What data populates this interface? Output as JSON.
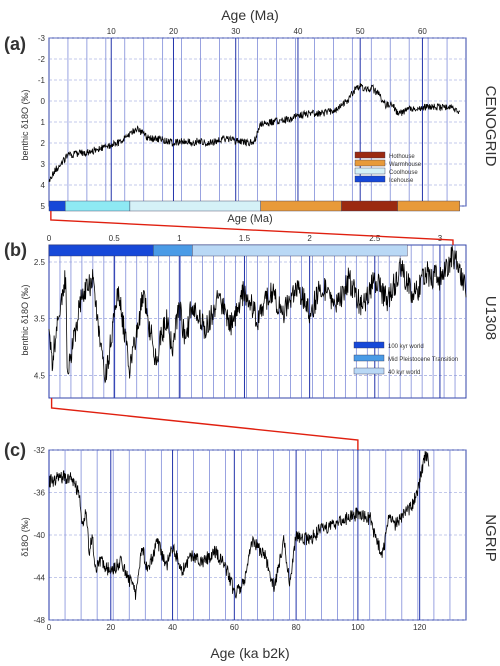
{
  "figure": {
    "top_axis_label": "Age (Ma)",
    "bottom_axis_label": "Age (ka b2k)"
  },
  "chart_data": [
    {
      "type": "line",
      "panel_letter": "(a)",
      "record_label": "CENOGRID",
      "ylabel": "benthic δ18O (‰)",
      "xlabel": "Age (Ma)",
      "xlim": [
        0,
        67
      ],
      "ylim": [
        -3,
        5
      ],
      "y_inverted": true,
      "x_ticks": [
        10,
        20,
        30,
        40,
        50,
        60
      ],
      "y_ticks": [
        -3,
        -2,
        -1,
        0,
        1,
        2,
        3,
        4,
        5
      ],
      "series": [
        {
          "name": "",
          "x": [
            0,
            1,
            2,
            3,
            5,
            8,
            11,
            13,
            14,
            15,
            16,
            18,
            20,
            22,
            23,
            24,
            26,
            28,
            30,
            32,
            33,
            34,
            36,
            38,
            40,
            42,
            44,
            46,
            48,
            49,
            50,
            51,
            52,
            53,
            54,
            55,
            56,
            58,
            60,
            62,
            64,
            66
          ],
          "y": [
            3.8,
            3.3,
            3.0,
            2.6,
            2.5,
            2.3,
            2.0,
            1.6,
            1.3,
            1.5,
            1.8,
            1.8,
            2.0,
            1.9,
            2.0,
            1.9,
            2.0,
            1.8,
            1.9,
            2.0,
            1.9,
            1.1,
            1.0,
            0.9,
            0.7,
            0.6,
            0.6,
            0.4,
            0.0,
            -0.5,
            -0.7,
            -0.5,
            -0.6,
            -0.3,
            0.2,
            0.1,
            0.6,
            0.4,
            0.3,
            0.3,
            0.3,
            0.5
          ]
        }
      ],
      "legend": [
        {
          "label": "Hothouse",
          "color": "#9b2a10"
        },
        {
          "label": "Warmhouse",
          "color": "#e89a3a"
        },
        {
          "label": "Coolhouse",
          "color": "#d5f1f7"
        },
        {
          "label": "Icehouse",
          "color": "#1648d8"
        }
      ],
      "climate_states": [
        {
          "state": "Icehouse",
          "from": 0,
          "to": 2.6
        },
        {
          "state": "Coolhouse",
          "from": 2.6,
          "to": 13
        },
        {
          "state": "Coolhouse",
          "from": 13,
          "to": 34
        },
        {
          "state": "Warmhouse",
          "from": 34,
          "to": 47
        },
        {
          "state": "Hothouse",
          "from": 47,
          "to": 56
        },
        {
          "state": "Warmhouse",
          "from": 56,
          "to": 66
        }
      ]
    },
    {
      "type": "line",
      "panel_letter": "(b)",
      "record_label": "U1308",
      "ylabel": "benthic δ18O (‰)",
      "xlabel": "Age (Ma)",
      "xlim": [
        0,
        3.2
      ],
      "ylim": [
        2.2,
        4.9
      ],
      "y_inverted": true,
      "x_ticks": [
        0,
        0.5,
        1,
        1.5,
        2,
        2.5,
        3
      ],
      "y_ticks": [
        2.5,
        3.5,
        4.5
      ],
      "series": [
        {
          "name": "",
          "x": [
            0.0,
            0.02,
            0.13,
            0.14,
            0.24,
            0.34,
            0.43,
            0.53,
            0.62,
            0.72,
            0.82,
            0.9,
            0.95,
            1.0,
            1.05,
            1.1,
            1.2,
            1.3,
            1.4,
            1.5,
            1.6,
            1.7,
            1.8,
            1.9,
            2.0,
            2.1,
            2.2,
            2.3,
            2.4,
            2.5,
            2.6,
            2.7,
            2.8,
            2.9,
            3.0,
            3.1,
            3.2
          ],
          "y": [
            3.5,
            4.3,
            2.7,
            4.5,
            3.2,
            2.8,
            4.6,
            3.0,
            4.4,
            3.1,
            4.2,
            3.5,
            4.0,
            3.3,
            3.9,
            3.2,
            3.7,
            3.1,
            3.6,
            3.0,
            3.5,
            3.0,
            3.4,
            2.9,
            3.4,
            2.9,
            3.3,
            2.8,
            3.3,
            2.8,
            3.2,
            2.6,
            3.1,
            2.7,
            2.8,
            2.4,
            2.9
          ]
        }
      ],
      "legend": [
        {
          "label": "100 kyr world",
          "color": "#1648d8"
        },
        {
          "label": "Mid Pleistocene Transition",
          "color": "#4a9be6"
        },
        {
          "label": "40 kyr world",
          "color": "#b9d8f5"
        }
      ],
      "regimes": [
        {
          "regime": "100 kyr world",
          "from": 0,
          "to": 0.8
        },
        {
          "regime": "Mid Pleistocene Transition",
          "from": 0.8,
          "to": 1.1
        },
        {
          "regime": "40 kyr world",
          "from": 1.1,
          "to": 2.75
        }
      ]
    },
    {
      "type": "line",
      "panel_letter": "(c)",
      "record_label": "NGRIP",
      "ylabel": "δ18O (‰)",
      "xlabel": "Age (ka b2k)",
      "xlim": [
        0,
        135
      ],
      "ylim": [
        -48,
        -32
      ],
      "y_inverted": false,
      "x_ticks": [
        0,
        20,
        40,
        60,
        80,
        100,
        120
      ],
      "y_ticks": [
        -32,
        -36,
        -40,
        -44,
        -48
      ],
      "series": [
        {
          "name": "",
          "x": [
            0,
            4,
            8,
            10,
            11,
            12,
            13,
            14,
            15,
            17,
            20,
            23,
            25,
            28,
            30,
            32,
            35,
            38,
            40,
            43,
            46,
            50,
            54,
            58,
            60,
            63,
            66,
            70,
            73,
            76,
            78,
            80,
            84,
            88,
            92,
            96,
            100,
            104,
            106,
            108,
            110,
            112,
            115,
            117,
            119,
            120,
            121,
            122,
            123
          ],
          "y": [
            -35.0,
            -34.5,
            -34.8,
            -36.5,
            -39.5,
            -37.5,
            -41.5,
            -40.0,
            -43.0,
            -42.5,
            -43.5,
            -42.5,
            -43.5,
            -45.5,
            -41.0,
            -43.5,
            -40.5,
            -43.0,
            -41.0,
            -43.5,
            -42.0,
            -42.5,
            -41.5,
            -43.5,
            -45.5,
            -44.5,
            -40.5,
            -42.0,
            -45.0,
            -40.5,
            -44.5,
            -40.0,
            -40.5,
            -39.5,
            -39.0,
            -38.5,
            -38.0,
            -38.5,
            -40.5,
            -42.0,
            -38.5,
            -39.0,
            -38.0,
            -37.5,
            -36.0,
            -35.0,
            -33.5,
            -32.5,
            -33.0
          ]
        }
      ]
    }
  ]
}
